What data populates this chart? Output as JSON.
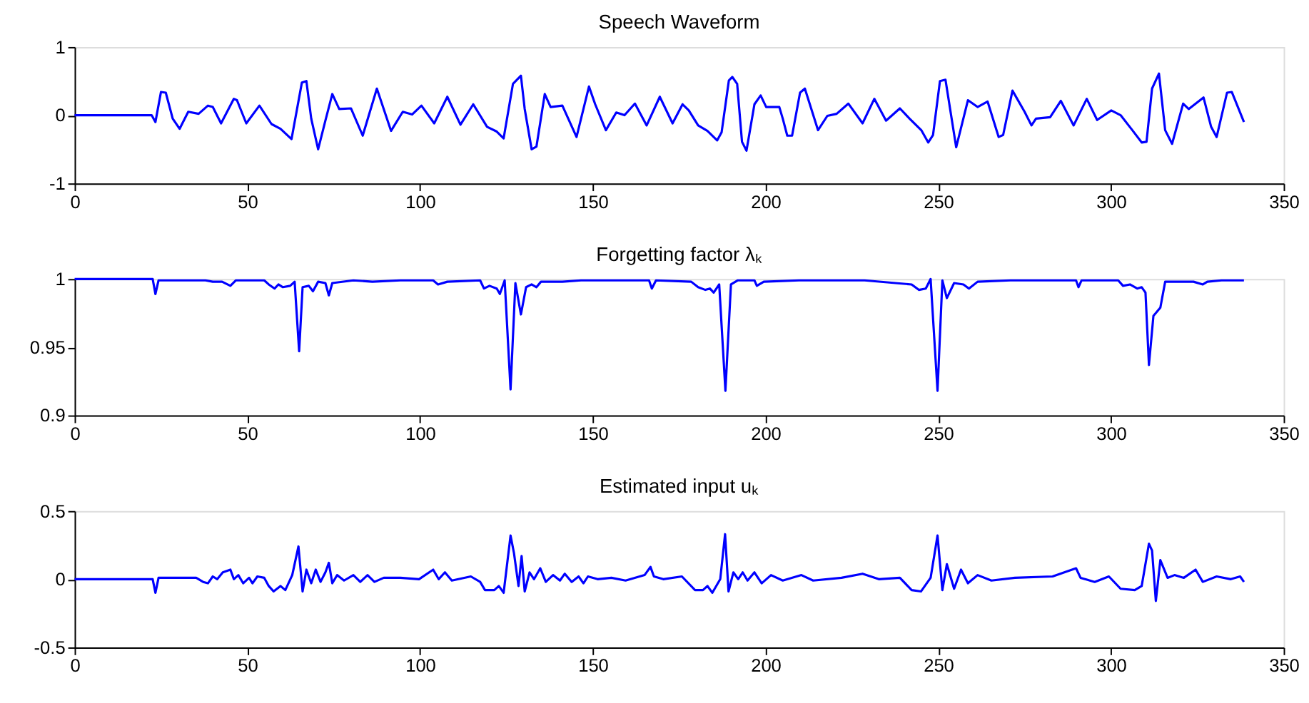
{
  "chart_data": [
    {
      "type": "line",
      "title": "Speech Waveform",
      "xlim": [
        0,
        350
      ],
      "xticks": [
        0,
        50,
        100,
        150,
        200,
        250,
        300,
        350
      ],
      "ylim": [
        -1,
        1
      ],
      "yticks": [
        -1,
        0,
        1
      ],
      "grid": false,
      "marker": "none",
      "line_style": "solid",
      "series": [
        {
          "color": "#0000ff",
          "x": [
            0,
            22.3,
            23.4,
            25,
            26.4,
            28.4,
            30.4,
            32.9,
            35.9,
            38.6,
            40,
            42.4,
            46.1,
            47,
            49.7,
            53.5,
            57,
            59.6,
            62.8,
            65.8,
            67.1,
            68.5,
            70.5,
            72.6,
            74.6,
            76.6,
            80,
            83.4,
            87.5,
            91.6,
            95,
            97.7,
            100.4,
            104.1,
            107.9,
            111.7,
            115.4,
            119.4,
            122.2,
            124.2,
            126.9,
            129.2,
            130.3,
            132.3,
            133.7,
            136.1,
            137.8,
            141.2,
            145.3,
            148.9,
            150.7,
            153.8,
            156.8,
            159.2,
            162.2,
            165.6,
            169.4,
            173.1,
            176,
            177.8,
            180.5,
            183.2,
            186,
            187.3,
            189.4,
            190.4,
            191.8,
            193.2,
            194.5,
            196.8,
            198.6,
            200.2,
            202.3,
            204,
            205,
            206.3,
            207.7,
            210,
            211.4,
            215.2,
            217.9,
            220.6,
            224,
            228.1,
            231.5,
            234.9,
            238.9,
            241.7,
            245.1,
            247.1,
            248.5,
            250.5,
            252.1,
            255.2,
            258.6,
            261.4,
            264.3,
            267.5,
            268.8,
            271.5,
            275,
            277,
            278.3,
            282.4,
            285.5,
            289.2,
            293,
            296,
            300.1,
            302.8,
            306.2,
            308.9,
            310.3,
            311.9,
            313.9,
            315.7,
            317.7,
            320.9,
            322.5,
            326.8,
            329,
            330.6,
            333.6,
            335,
            338.5
          ],
          "values": [
            0,
            0,
            -0.1,
            0.34,
            0.33,
            -0.05,
            -0.2,
            0.05,
            0.02,
            0.14,
            0.12,
            -0.12,
            0.24,
            0.22,
            -0.12,
            0.14,
            -0.13,
            -0.2,
            -0.35,
            0.48,
            0.5,
            -0.05,
            -0.5,
            -0.08,
            0.31,
            0.09,
            0.1,
            -0.3,
            0.39,
            -0.23,
            0.05,
            0.01,
            0.14,
            -0.12,
            0.27,
            -0.14,
            0.16,
            -0.17,
            -0.24,
            -0.34,
            0.46,
            0.58,
            0.09,
            -0.5,
            -0.46,
            0.31,
            0.12,
            0.14,
            -0.32,
            0.42,
            0.16,
            -0.22,
            0.04,
            0,
            0.17,
            -0.15,
            0.27,
            -0.12,
            0.16,
            0.07,
            -0.15,
            -0.23,
            -0.37,
            -0.25,
            0.51,
            0.56,
            0.46,
            -0.39,
            -0.52,
            0.16,
            0.29,
            0.12,
            0.12,
            0.12,
            -0.05,
            -0.3,
            -0.3,
            0.33,
            0.39,
            -0.22,
            -0.01,
            0.02,
            0.17,
            -0.12,
            0.24,
            -0.08,
            0.1,
            -0.05,
            -0.22,
            -0.4,
            -0.29,
            0.5,
            0.52,
            -0.47,
            0.22,
            0.12,
            0.2,
            -0.32,
            -0.29,
            0.36,
            0.05,
            -0.15,
            -0.05,
            -0.03,
            0.21,
            -0.15,
            0.24,
            -0.07,
            0.07,
            0,
            -0.22,
            -0.4,
            -0.39,
            0.39,
            0.61,
            -0.22,
            -0.42,
            0.17,
            0.09,
            0.26,
            -0.17,
            -0.32,
            0.33,
            0.34,
            -0.1
          ]
        }
      ]
    },
    {
      "type": "line",
      "title": "Forgetting factor λₖ",
      "xlim": [
        0,
        350
      ],
      "xticks": [
        0,
        50,
        100,
        150,
        200,
        250,
        300,
        350
      ],
      "ylim": [
        0.9,
        1
      ],
      "yticks": [
        0.9,
        0.95,
        1
      ],
      "grid": false,
      "marker": "none",
      "line_style": "solid",
      "series": [
        {
          "color": "#0000ff",
          "x": [
            0,
            22.6,
            23.4,
            24.3,
            37.9,
            40,
            42.7,
            45.1,
            46.7,
            54.9,
            56.2,
            57.9,
            59,
            60.3,
            62.4,
            63.7,
            65,
            66,
            67.8,
            69,
            70.5,
            72.6,
            73.6,
            74.6,
            80.7,
            86.2,
            94.3,
            103.8,
            105.2,
            107.9,
            117.4,
            118.5,
            120.1,
            122.2,
            123.1,
            124.5,
            126.2,
            127.6,
            129.2,
            130.7,
            132.3,
            133.7,
            135,
            141.2,
            146.6,
            166.3,
            167.1,
            168.3,
            178.5,
            180.5,
            182.6,
            183.9,
            185,
            186.6,
            188.4,
            190,
            192,
            196.8,
            197.5,
            199.5,
            209.7,
            228.7,
            242.3,
            244.4,
            246.4,
            247.8,
            249.8,
            251.2,
            252.5,
            254.6,
            257.3,
            258.9,
            261.4,
            270.9,
            289.9,
            290.6,
            291.5,
            302.1,
            303.5,
            305.5,
            307.6,
            308.9,
            310,
            311,
            312.3,
            314.3,
            315.7,
            323.9,
            326.6,
            327.9,
            332,
            338.5
          ],
          "values": [
            1,
            1,
            0.989,
            0.999,
            0.999,
            0.998,
            0.998,
            0.995,
            0.999,
            0.999,
            0.996,
            0.993,
            0.996,
            0.994,
            0.995,
            0.998,
            0.947,
            0.994,
            0.995,
            0.991,
            0.998,
            0.997,
            0.988,
            0.997,
            0.999,
            0.998,
            0.999,
            0.999,
            0.996,
            0.998,
            0.999,
            0.993,
            0.995,
            0.993,
            0.989,
            0.999,
            0.919,
            0.997,
            0.974,
            0.994,
            0.996,
            0.994,
            0.998,
            0.998,
            0.999,
            0.999,
            0.993,
            0.999,
            0.998,
            0.994,
            0.992,
            0.993,
            0.99,
            0.996,
            0.918,
            0.996,
            0.999,
            0.999,
            0.995,
            0.998,
            0.999,
            0.999,
            0.996,
            0.992,
            0.993,
            1,
            0.918,
            0.999,
            0.986,
            0.997,
            0.996,
            0.993,
            0.998,
            0.999,
            0.999,
            0.994,
            0.999,
            0.999,
            0.995,
            0.996,
            0.993,
            0.994,
            0.99,
            0.937,
            0.973,
            0.979,
            0.998,
            0.998,
            0.996,
            0.998,
            0.999,
            0.999
          ]
        }
      ]
    },
    {
      "type": "line",
      "title": "Estimated input uₖ",
      "xlim": [
        0,
        350
      ],
      "xticks": [
        0,
        50,
        100,
        150,
        200,
        250,
        300,
        350
      ],
      "ylim": [
        -0.5,
        0.5
      ],
      "yticks": [
        -0.5,
        0,
        0.5
      ],
      "grid": false,
      "marker": "none",
      "line_style": "solid",
      "series": [
        {
          "color": "#0000ff",
          "x": [
            0,
            22.6,
            23.4,
            24.3,
            35.2,
            37.2,
            38.6,
            40,
            41.3,
            42.9,
            45.1,
            46.1,
            47.4,
            48.8,
            50.5,
            51.5,
            52.9,
            54.9,
            56.2,
            57.6,
            59.6,
            61,
            63,
            64.8,
            66,
            67.1,
            68.5,
            69.8,
            71.2,
            72.6,
            73.6,
            74.6,
            76,
            78,
            80.7,
            82.7,
            84.8,
            86.8,
            89.5,
            94.3,
            99.7,
            103.8,
            105.4,
            107.2,
            109.2,
            114.7,
            117.4,
            118.8,
            121.5,
            122.8,
            124.2,
            126.2,
            127.2,
            128.5,
            129.4,
            130.3,
            131.7,
            133,
            134.8,
            136.4,
            138.5,
            140.5,
            141.9,
            143.9,
            145.9,
            147.3,
            148.6,
            151.4,
            155.4,
            159.5,
            165,
            166.7,
            167.7,
            170.4,
            175.8,
            179.6,
            181.9,
            183.2,
            184.6,
            186.9,
            188.3,
            189.3,
            190.7,
            192.1,
            193.4,
            194.8,
            196.8,
            198.9,
            201.6,
            205,
            210.4,
            213.8,
            222,
            228.1,
            232.8,
            238.9,
            242.3,
            245,
            247.8,
            249.8,
            251.2,
            252.5,
            254.6,
            256.6,
            258.6,
            261.4,
            265.4,
            272.2,
            283.1,
            289.9,
            291.2,
            295.3,
            299.4,
            302.8,
            306.9,
            308.9,
            311,
            311.9,
            313,
            314.3,
            316.4,
            318.4,
            321.1,
            324.5,
            326.6,
            330.6,
            334.7,
            337.4,
            338.5
          ],
          "values": [
            0,
            0,
            -0.1,
            0.01,
            0.01,
            -0.02,
            -0.03,
            0.02,
            0,
            0.05,
            0.07,
            0,
            0.03,
            -0.03,
            0.01,
            -0.03,
            0.02,
            0.01,
            -0.05,
            -0.09,
            -0.05,
            -0.08,
            0.03,
            0.24,
            -0.09,
            0.07,
            -0.03,
            0.07,
            -0.02,
            0.05,
            0.12,
            -0.03,
            0.03,
            -0.01,
            0.03,
            -0.02,
            0.03,
            -0.02,
            0.01,
            0.01,
            0,
            0.07,
            0,
            0.05,
            -0.01,
            0.02,
            -0.02,
            -0.08,
            -0.08,
            -0.05,
            -0.1,
            0.32,
            0.19,
            -0.05,
            0.17,
            -0.09,
            0.05,
            0,
            0.08,
            -0.02,
            0.03,
            -0.01,
            0.04,
            -0.02,
            0.02,
            -0.03,
            0.02,
            0,
            0.01,
            -0.01,
            0.03,
            0.09,
            0.02,
            0,
            0.02,
            -0.08,
            -0.08,
            -0.05,
            -0.1,
            0,
            0.33,
            -0.09,
            0.05,
            0,
            0.05,
            -0.01,
            0.05,
            -0.03,
            0.03,
            -0.01,
            0.03,
            -0.01,
            0.01,
            0.04,
            0,
            0.01,
            -0.08,
            -0.09,
            0.01,
            0.32,
            -0.08,
            0.11,
            -0.07,
            0.07,
            -0.03,
            0.03,
            -0.01,
            0.01,
            0.02,
            0.08,
            0.01,
            -0.02,
            0.02,
            -0.07,
            -0.08,
            -0.05,
            0.26,
            0.21,
            -0.16,
            0.14,
            0.01,
            0.03,
            0.01,
            0.07,
            -0.02,
            0.02,
            0,
            0.02,
            -0.02
          ]
        }
      ]
    }
  ]
}
